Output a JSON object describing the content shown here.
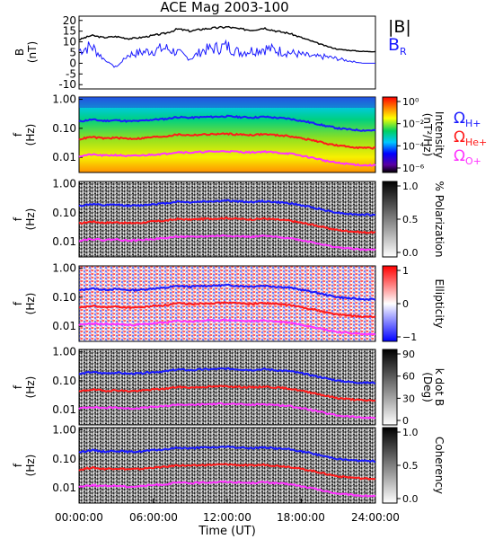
{
  "title": "ACE Mag 2003-100",
  "x_axis": {
    "label": "Time (UT)",
    "ticks": [
      "00:00:00",
      "06:00:00",
      "12:00:00",
      "18:00:00",
      "24:00:00"
    ],
    "range_hours": [
      0,
      24
    ]
  },
  "colors": {
    "B_total": "#000000",
    "B_R": "#1a1aff",
    "H_plus": "#1a1aff",
    "He_plus": "#ff1a1a",
    "O_plus": "#ff33ff"
  },
  "legend": {
    "B_total": "|B|",
    "B_R_main": "B",
    "B_R_sub": "R",
    "omega": "Ω",
    "H_sub": "H+",
    "He_sub": "He+",
    "O_sub": "O+"
  },
  "panels": [
    {
      "id": "mag",
      "ylabel": "B",
      "yunit": "(nT)",
      "type": "line"
    },
    {
      "id": "intensity",
      "ylabel": "f",
      "yunit": "(Hz)",
      "cbar_label": "Intensity",
      "cbar_unit": "(nT²/Hz)",
      "cbar_ticks": [
        "10⁰",
        "10⁻²",
        "10⁻⁴",
        "10⁻⁶"
      ],
      "colormap": "rainbow"
    },
    {
      "id": "polarization",
      "ylabel": "f",
      "yunit": "(Hz)",
      "cbar_label": "% Polarization",
      "cbar_unit": "",
      "cbar_ticks": [
        "1.0",
        "0.5",
        "0.0"
      ],
      "colormap": "gray"
    },
    {
      "id": "ellipticity",
      "ylabel": "f",
      "yunit": "(Hz)",
      "cbar_label": "Ellipticity",
      "cbar_unit": "",
      "cbar_ticks": [
        "1",
        "0",
        "−1"
      ],
      "colormap": "bwr"
    },
    {
      "id": "kdotb",
      "ylabel": "f",
      "yunit": "(Hz)",
      "cbar_label": "k dot B",
      "cbar_unit": "(Deg)",
      "cbar_ticks": [
        "90",
        "60",
        "30",
        "0"
      ],
      "colormap": "gray"
    },
    {
      "id": "coherency",
      "ylabel": "f",
      "yunit": "(Hz)",
      "cbar_label": "Coherency",
      "cbar_unit": "",
      "cbar_ticks": [
        "1.0",
        "0.5",
        "0.0"
      ],
      "colormap": "gray"
    }
  ],
  "chart_data": {
    "type": "heatmap",
    "title": "ACE Mag 2003-100",
    "xlabel": "Time (UT)",
    "xlim_hours": [
      0,
      24
    ],
    "mag_panel": {
      "ylabel": "B (nT)",
      "ylim": [
        -12,
        22
      ],
      "yticks": [
        "20",
        "15",
        "10",
        "5",
        "0",
        "-5",
        "-10"
      ],
      "series": [
        {
          "name": "|B|",
          "x_hours": [
            0,
            1,
            2,
            3,
            4,
            5,
            6,
            7,
            8,
            9,
            10,
            11,
            12,
            13,
            14,
            15,
            16,
            17,
            18,
            19,
            20,
            21,
            22,
            23,
            24
          ],
          "values": [
            11,
            13,
            12,
            12.5,
            11.5,
            12,
            13,
            14,
            16,
            15,
            16,
            16.5,
            17,
            16,
            15.5,
            16.5,
            15,
            14,
            12,
            10,
            8,
            6.5,
            6,
            5.5,
            5.5
          ]
        },
        {
          "name": "B_R",
          "x_hours": [
            0,
            1,
            2,
            3,
            4,
            5,
            6,
            7,
            8,
            9,
            10,
            11,
            12,
            13,
            14,
            15,
            16,
            17,
            18,
            19,
            20,
            21,
            22,
            23,
            24
          ],
          "values": [
            6,
            8,
            2,
            -2,
            4,
            5,
            6,
            7,
            5,
            2,
            6,
            7,
            8,
            5,
            6,
            7,
            6,
            5,
            4,
            3,
            3,
            2,
            1,
            0,
            0
          ]
        }
      ]
    },
    "spectral_panels": {
      "ylabel": "f (Hz)",
      "ylim": [
        0.003,
        1.2
      ],
      "yscale": "log",
      "yticks": [
        "1.00",
        "0.10",
        "0.01"
      ],
      "series": [
        {
          "name": "ΩH+",
          "x_hours": [
            0,
            1,
            2,
            3,
            4,
            5,
            6,
            7,
            8,
            9,
            10,
            11,
            12,
            13,
            14,
            15,
            16,
            17,
            18,
            19,
            20,
            21,
            22,
            23,
            24
          ],
          "values": [
            0.17,
            0.2,
            0.18,
            0.19,
            0.175,
            0.18,
            0.2,
            0.21,
            0.245,
            0.23,
            0.245,
            0.25,
            0.26,
            0.245,
            0.235,
            0.25,
            0.23,
            0.215,
            0.18,
            0.15,
            0.12,
            0.1,
            0.09,
            0.085,
            0.085
          ]
        },
        {
          "name": "ΩHe+",
          "x_hours": [
            0,
            1,
            2,
            3,
            4,
            5,
            6,
            7,
            8,
            9,
            10,
            11,
            12,
            13,
            14,
            15,
            16,
            17,
            18,
            19,
            20,
            21,
            22,
            23,
            24
          ],
          "values": [
            0.042,
            0.05,
            0.045,
            0.047,
            0.044,
            0.045,
            0.05,
            0.053,
            0.061,
            0.058,
            0.061,
            0.063,
            0.065,
            0.061,
            0.059,
            0.063,
            0.058,
            0.054,
            0.045,
            0.038,
            0.03,
            0.025,
            0.023,
            0.021,
            0.021
          ]
        },
        {
          "name": "ΩO+",
          "x_hours": [
            0,
            1,
            2,
            3,
            4,
            5,
            6,
            7,
            8,
            9,
            10,
            11,
            12,
            13,
            14,
            15,
            16,
            17,
            18,
            19,
            20,
            21,
            22,
            23,
            24
          ],
          "values": [
            0.011,
            0.0125,
            0.0115,
            0.012,
            0.011,
            0.0115,
            0.0125,
            0.0133,
            0.0153,
            0.0145,
            0.0153,
            0.0158,
            0.0163,
            0.0153,
            0.0148,
            0.0158,
            0.0145,
            0.0135,
            0.0113,
            0.0095,
            0.0075,
            0.0063,
            0.0058,
            0.0053,
            0.0053
          ]
        }
      ]
    }
  }
}
